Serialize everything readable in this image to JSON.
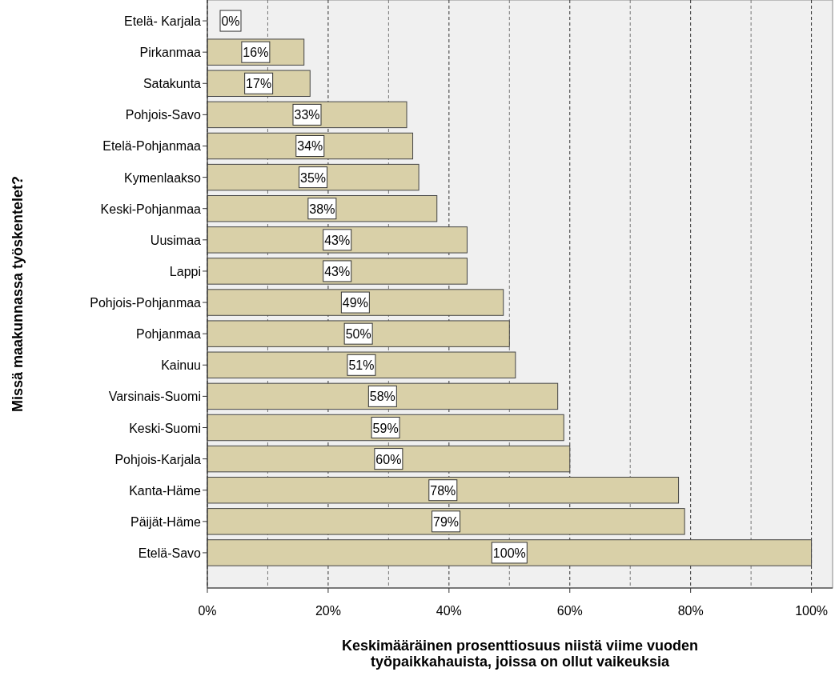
{
  "chart_data": {
    "type": "bar",
    "orientation": "horizontal",
    "xlabel": "Keskimääräinen prosenttiosuus niistä viime vuoden\ntyöpaikkahauista, joissa on ollut vaikeuksia",
    "ylabel": "Missä maakunnassa työskentelet?",
    "categories": [
      "Etelä- Karjala",
      "Pirkanmaa",
      "Satakunta",
      "Pohjois-Savo",
      "Etelä-Pohjanmaa",
      "Kymenlaakso",
      "Keski-Pohjanmaa",
      "Uusimaa",
      "Lappi",
      "Pohjois-Pohjanmaa",
      "Pohjanmaa",
      "Kainuu",
      "Varsinais-Suomi",
      "Keski-Suomi",
      "Pohjois-Karjala",
      "Kanta-Häme",
      "Päijät-Häme",
      "Etelä-Savo"
    ],
    "values": [
      0,
      16,
      17,
      33,
      34,
      35,
      38,
      43,
      43,
      49,
      50,
      51,
      58,
      59,
      60,
      78,
      79,
      100
    ],
    "value_labels": [
      "0%",
      "16%",
      "17%",
      "33%",
      "34%",
      "35%",
      "38%",
      "43%",
      "43%",
      "49%",
      "50%",
      "51%",
      "58%",
      "59%",
      "60%",
      "78%",
      "79%",
      "100%"
    ],
    "color": "#d9d0a8",
    "xlim": [
      0,
      103.5
    ],
    "xticks": [
      {
        "value": 0,
        "label": "0%"
      },
      {
        "value": 10,
        "label": null
      },
      {
        "value": 20,
        "label": "20%"
      },
      {
        "value": 30,
        "label": null
      },
      {
        "value": 40,
        "label": "40%"
      },
      {
        "value": 50,
        "label": null
      },
      {
        "value": 60,
        "label": "60%"
      },
      {
        "value": 70,
        "label": null
      },
      {
        "value": 80,
        "label": "80%"
      },
      {
        "value": 90,
        "label": null
      },
      {
        "value": 100,
        "label": "100%"
      }
    ],
    "grid": "x"
  }
}
